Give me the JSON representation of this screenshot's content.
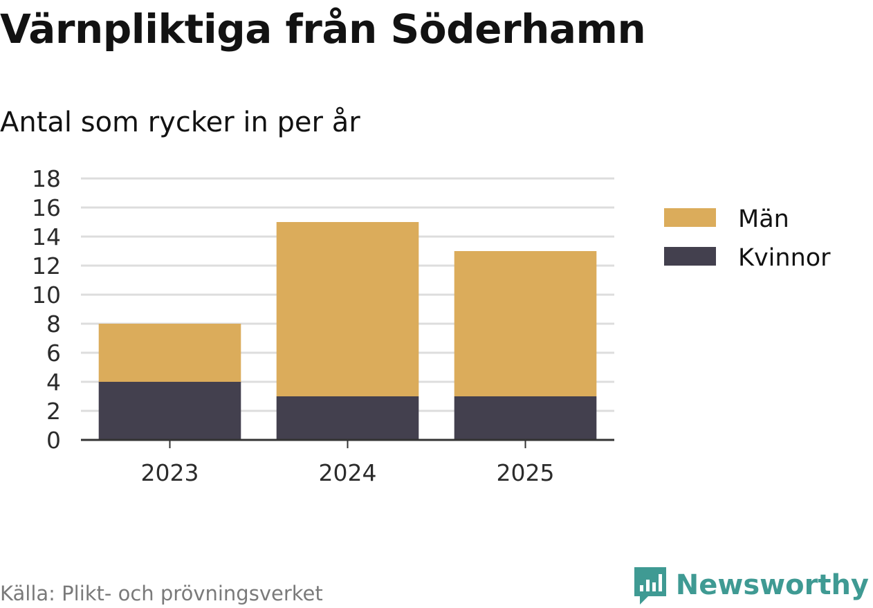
{
  "header": {
    "title": "Värnpliktiga från Söderhamn",
    "subtitle": "Antal som rycker in per år"
  },
  "footer": {
    "source": "Källa: Plikt- och prövningsverket",
    "brand": "Newsworthy",
    "brand_color": "#3f9a93"
  },
  "chart_data": {
    "type": "bar",
    "stacked": true,
    "title": "Värnpliktiga från Söderhamn",
    "subtitle": "Antal som rycker in per år",
    "xlabel": "",
    "ylabel": "",
    "categories": [
      "2023",
      "2024",
      "2025"
    ],
    "series": [
      {
        "name": "Kvinnor",
        "values": [
          4,
          3,
          3
        ],
        "color": "#43404e"
      },
      {
        "name": "Män",
        "values": [
          4,
          12,
          10
        ],
        "color": "#dbac5b"
      }
    ],
    "legend_order": [
      "Män",
      "Kvinnor"
    ],
    "legend_position": "right",
    "ylim": [
      0,
      18
    ],
    "yticks": [
      "0",
      "2",
      "4",
      "6",
      "8",
      "10",
      "12",
      "14",
      "16",
      "18"
    ],
    "grid": true
  }
}
